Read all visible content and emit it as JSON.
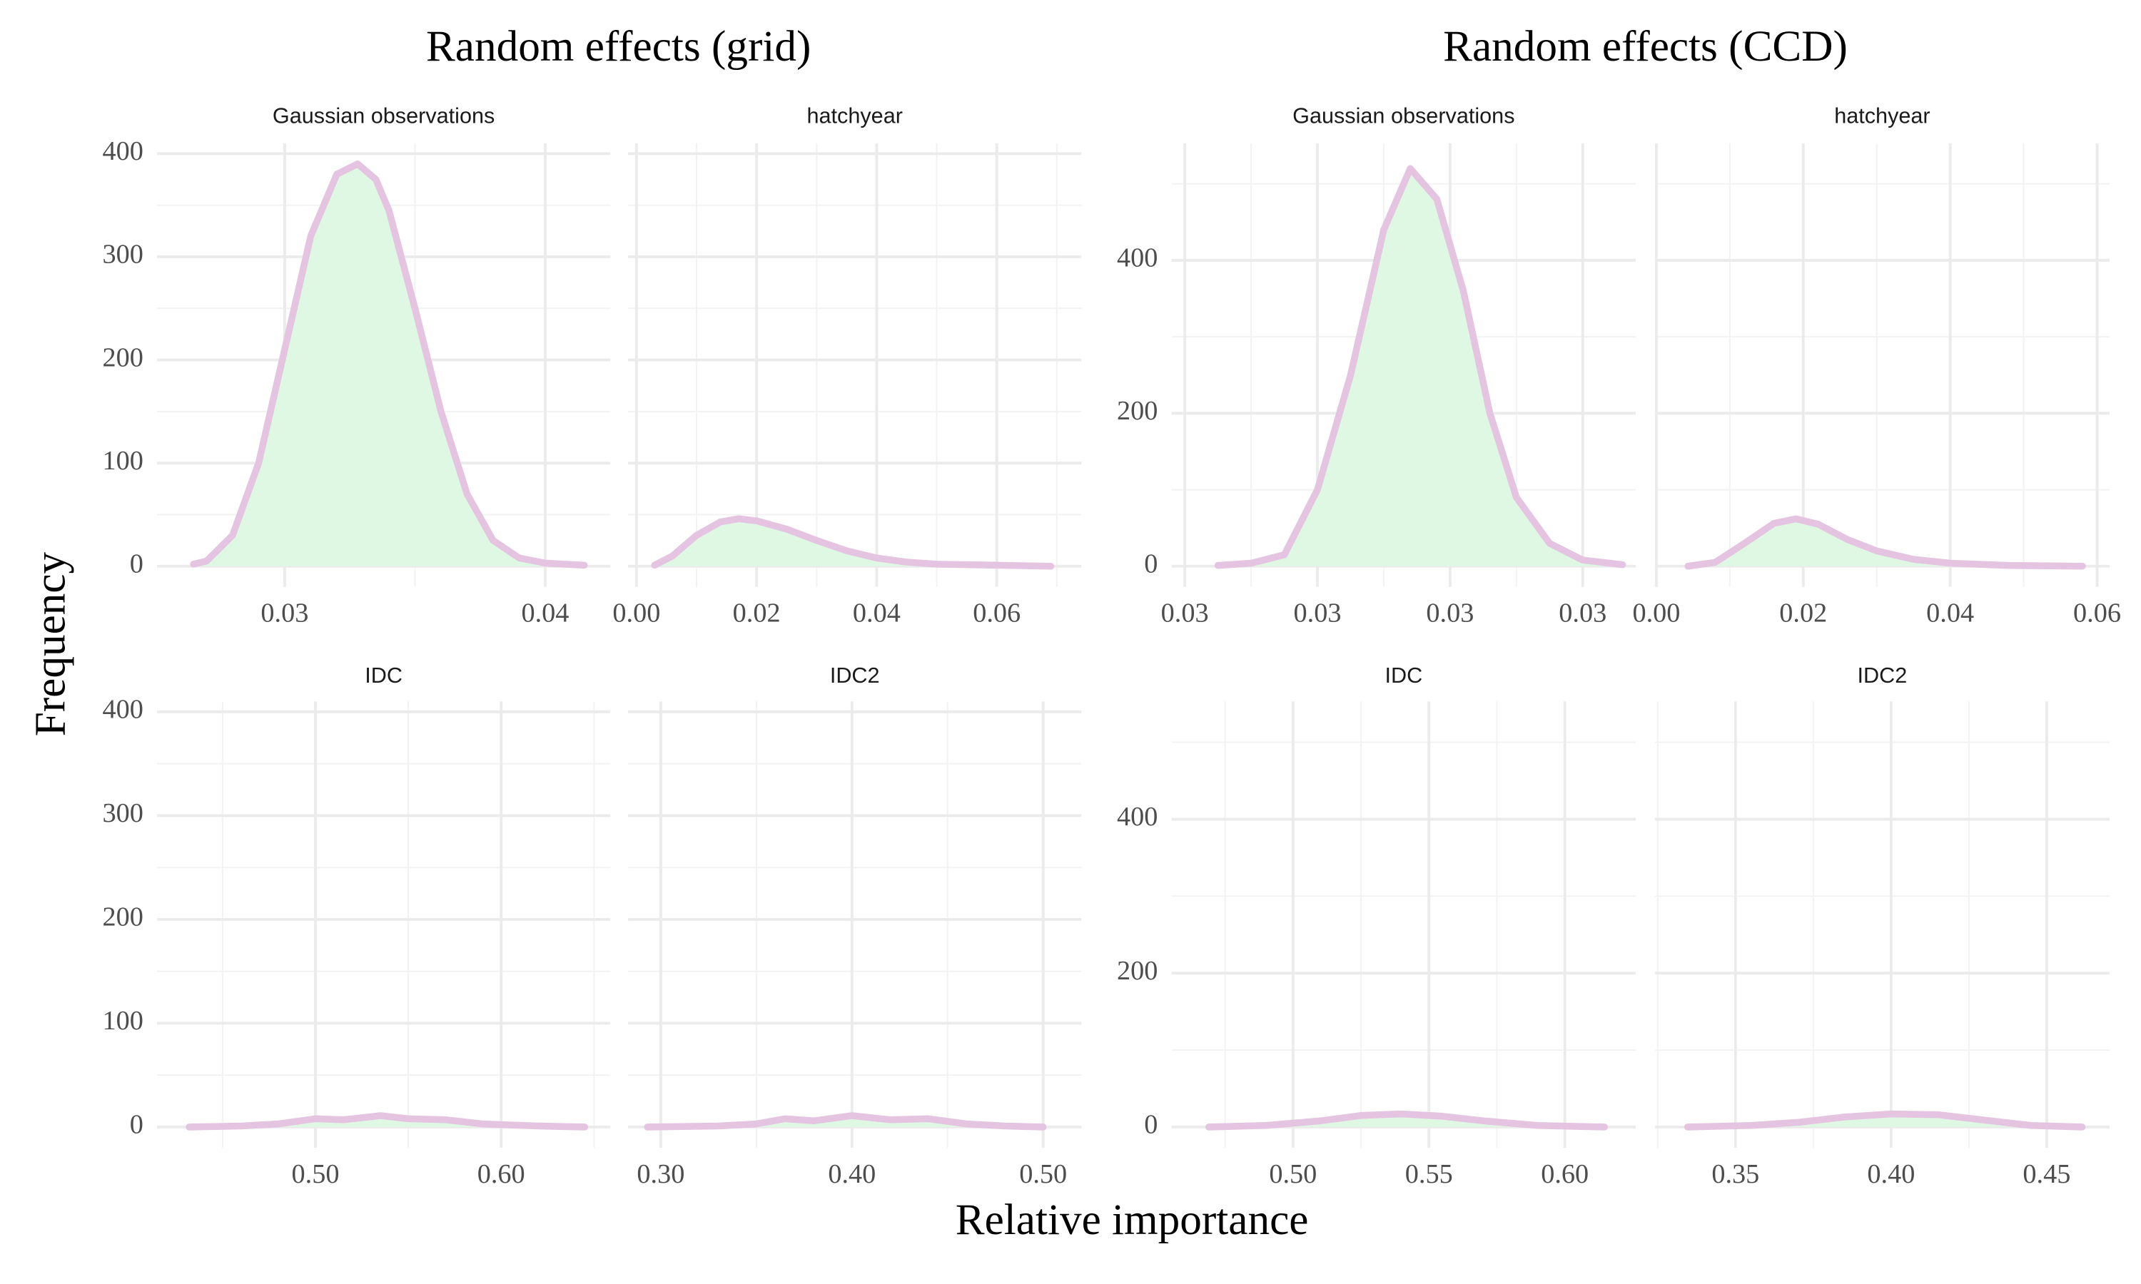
{
  "titles": [
    "Random effects (grid)",
    "Random effects (CCD)"
  ],
  "y_label": "Frequency",
  "x_label": "Relative importance",
  "chart_data": [
    {
      "type": "area",
      "title": "Gaussian observations",
      "color": "#e4c4e0",
      "fill_color": "#dff8e4",
      "grid": true,
      "x": [
        0.0265,
        0.027,
        0.028,
        0.029,
        0.03,
        0.031,
        0.032,
        0.0328,
        0.0335,
        0.034,
        0.035,
        0.036,
        0.037,
        0.038,
        0.039,
        0.04,
        0.0415
      ],
      "values": [
        2,
        5,
        30,
        100,
        210,
        320,
        380,
        390,
        375,
        345,
        250,
        150,
        70,
        25,
        8,
        3,
        1
      ],
      "xlim": [
        0.0251,
        0.0425
      ],
      "xticks": [
        0.03,
        0.04
      ],
      "xminor": [
        0.035
      ],
      "ylim": [
        -20,
        410
      ],
      "yticks": [
        0,
        100,
        200,
        300,
        400
      ],
      "yminor": [
        50,
        150,
        250,
        350
      ]
    },
    {
      "type": "area",
      "title": "hatchyear",
      "color": "#e4c4e0",
      "fill_color": "#dff8e4",
      "grid": true,
      "x": [
        0.003,
        0.006,
        0.01,
        0.014,
        0.017,
        0.02,
        0.025,
        0.03,
        0.035,
        0.04,
        0.045,
        0.05,
        0.06,
        0.069
      ],
      "values": [
        1,
        10,
        30,
        43,
        46,
        44,
        36,
        25,
        15,
        8,
        4,
        2,
        1,
        0
      ],
      "xlim": [
        -0.0014,
        0.0741
      ],
      "xticks": [
        {
          "value": 0,
          "label": "0.00"
        },
        0.02,
        0.04,
        0.06
      ],
      "xminor": [
        0.01,
        0.03,
        0.05,
        0.07
      ],
      "ylim": [
        -20,
        410
      ],
      "yticks": [
        0,
        100,
        200,
        300,
        400
      ],
      "yminor": [
        50,
        150,
        250,
        350
      ]
    },
    {
      "type": "area",
      "title": "IDC",
      "color": "#e4c4e0",
      "fill_color": "#dff8e4",
      "grid": true,
      "x": [
        0.432,
        0.46,
        0.48,
        0.5,
        0.515,
        0.535,
        0.55,
        0.57,
        0.59,
        0.62,
        0.645
      ],
      "values": [
        0,
        1,
        3,
        8,
        7,
        11,
        8,
        7,
        3,
        1,
        0
      ],
      "xlim": [
        0.4147,
        0.6588
      ],
      "xticks": [
        {
          "value": 0.5,
          "label": "0.50"
        },
        {
          "value": 0.6,
          "label": "0.60"
        }
      ],
      "xminor": [
        0.45,
        0.55,
        0.65
      ],
      "ylim": [
        -20,
        410
      ],
      "yticks": [
        0,
        100,
        200,
        300,
        400
      ],
      "yminor": [
        50,
        150,
        250,
        350
      ]
    },
    {
      "type": "area",
      "title": "IDC2",
      "color": "#e4c4e0",
      "fill_color": "#dff8e4",
      "grid": true,
      "x": [
        0.293,
        0.33,
        0.35,
        0.365,
        0.38,
        0.4,
        0.42,
        0.44,
        0.46,
        0.48,
        0.5
      ],
      "values": [
        0,
        1,
        3,
        8,
        6,
        11,
        7,
        8,
        3,
        1,
        0
      ],
      "xlim": [
        0.2829,
        0.52
      ],
      "xticks": [
        {
          "value": 0.3,
          "label": "0.30"
        },
        {
          "value": 0.4,
          "label": "0.40"
        },
        {
          "value": 0.5,
          "label": "0.50"
        }
      ],
      "xminor": [
        0.35,
        0.45
      ],
      "ylim": [
        -20,
        410
      ],
      "yticks": [
        0,
        100,
        200,
        300,
        400
      ],
      "yminor": [
        50,
        150,
        250,
        350
      ]
    },
    {
      "type": "area",
      "title": "Gaussian observations",
      "color": "#e4c4e0",
      "fill_color": "#dff8e4",
      "grid": true,
      "x": [
        0.0265,
        0.027,
        0.0275,
        0.028,
        0.0285,
        0.029,
        0.0294,
        0.0298,
        0.0302,
        0.0306,
        0.031,
        0.0315,
        0.032,
        0.0326
      ],
      "values": [
        1,
        4,
        15,
        100,
        250,
        440,
        520,
        480,
        360,
        200,
        90,
        30,
        8,
        2
      ],
      "xlim": [
        0.0258,
        0.0328
      ],
      "xticks": [
        {
          "value": 0.026,
          "label": "0.03"
        },
        {
          "value": 0.028,
          "label": "0.03"
        },
        {
          "value": 0.03,
          "label": "0.03"
        },
        {
          "value": 0.032,
          "label": "0.03"
        }
      ],
      "xminor": [
        0.027,
        0.029,
        0.031
      ],
      "ylim": [
        -27,
        553
      ],
      "yticks": [
        0,
        200,
        400
      ],
      "yminor": [
        100,
        300,
        500
      ]
    },
    {
      "type": "area",
      "title": "hatchyear",
      "color": "#e4c4e0",
      "fill_color": "#dff8e4",
      "grid": true,
      "x": [
        0.0043,
        0.008,
        0.012,
        0.016,
        0.019,
        0.022,
        0.026,
        0.03,
        0.035,
        0.04,
        0.048,
        0.058
      ],
      "values": [
        0,
        5,
        30,
        56,
        62,
        55,
        35,
        20,
        9,
        4,
        1,
        0
      ],
      "xlim": [
        -0.0002,
        0.0617
      ],
      "xticks": [
        {
          "value": 0,
          "label": "0.00"
        },
        0.02,
        0.04,
        0.06
      ],
      "xminor": [
        0.01,
        0.03,
        0.05
      ],
      "ylim": [
        -27,
        553
      ],
      "yticks": [
        0,
        200,
        400
      ],
      "yminor": [
        100,
        300,
        500
      ]
    },
    {
      "type": "area",
      "title": "IDC",
      "color": "#e4c4e0",
      "fill_color": "#dff8e4",
      "grid": true,
      "x": [
        0.469,
        0.49,
        0.51,
        0.525,
        0.54,
        0.555,
        0.57,
        0.59,
        0.6146
      ],
      "values": [
        0,
        2,
        8,
        15,
        17,
        14,
        8,
        2,
        0
      ],
      "xlim": [
        0.4553,
        0.6261
      ],
      "xticks": [
        {
          "value": 0.5,
          "label": "0.50"
        },
        0.55,
        {
          "value": 0.6,
          "label": "0.60"
        }
      ],
      "xminor": [
        0.475,
        0.525,
        0.575
      ],
      "ylim": [
        -27,
        553
      ],
      "yticks": [
        0,
        200,
        400
      ],
      "yminor": [
        100,
        300,
        500
      ]
    },
    {
      "type": "area",
      "title": "IDC2",
      "color": "#e4c4e0",
      "fill_color": "#dff8e4",
      "grid": true,
      "x": [
        0.3346,
        0.355,
        0.37,
        0.385,
        0.4,
        0.415,
        0.43,
        0.445,
        0.4614
      ],
      "values": [
        0,
        2,
        6,
        13,
        17,
        16,
        9,
        2,
        0
      ],
      "xlim": [
        0.3241,
        0.4702
      ],
      "xticks": [
        0.35,
        {
          "value": 0.4,
          "label": "0.40"
        },
        0.45
      ],
      "xminor": [
        0.325,
        0.375,
        0.425
      ],
      "ylim": [
        -27,
        553
      ],
      "yticks": [
        0,
        200,
        400
      ],
      "yminor": [
        100,
        300,
        500
      ]
    }
  ]
}
